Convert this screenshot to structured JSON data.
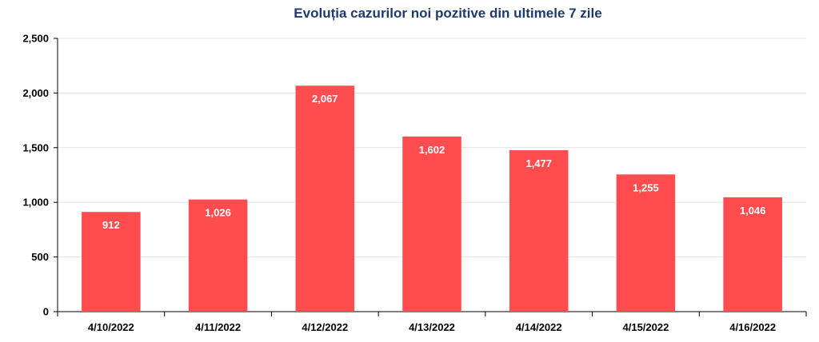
{
  "chart_data": {
    "type": "bar",
    "title": "Evoluția cazurilor noi pozitive din ultimele 7 zile",
    "categories": [
      "4/10/2022",
      "4/11/2022",
      "4/12/2022",
      "4/13/2022",
      "4/14/2022",
      "4/15/2022",
      "4/16/2022"
    ],
    "values": [
      912,
      1026,
      2067,
      1602,
      1477,
      1255,
      1046
    ],
    "value_labels": [
      "912",
      "1,026",
      "2,067",
      "1,602",
      "1,477",
      "1,255",
      "1,046"
    ],
    "y_ticks": [
      0,
      500,
      1000,
      1500,
      2000,
      2500
    ],
    "y_tick_labels": [
      "0",
      "500",
      "1,000",
      "1,500",
      "2,000",
      "2,500"
    ],
    "ylim": [
      0,
      2500
    ],
    "xlabel": "",
    "ylabel": "",
    "grid": true,
    "legend": "none",
    "bar_color": "#ff4d4f",
    "title_color": "#1f3a6e"
  }
}
